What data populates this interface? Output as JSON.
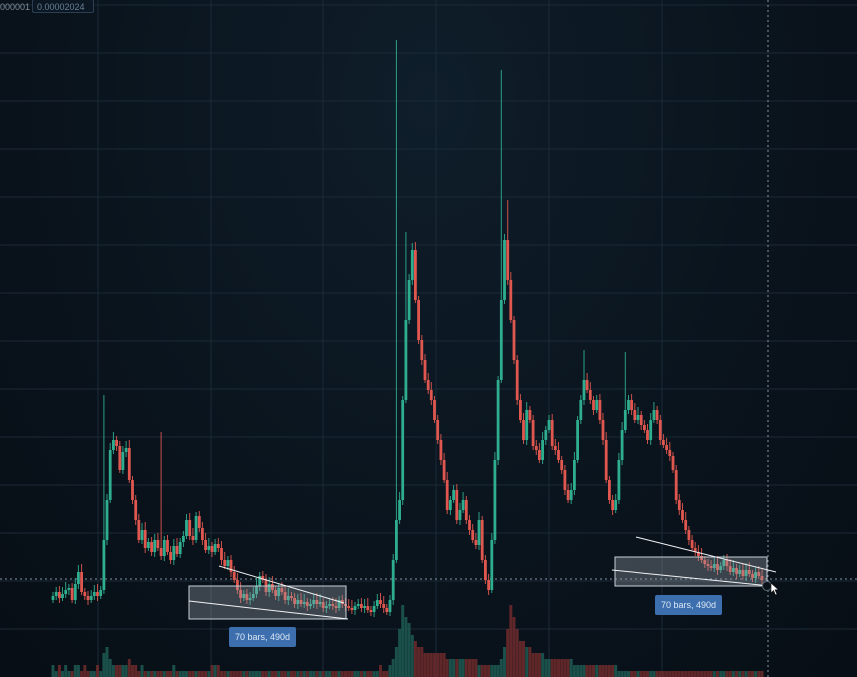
{
  "top": {
    "left_value": "000001",
    "price_value": "0.00002024"
  },
  "chart_data": {
    "type": "candlestick",
    "title": "",
    "xlabel": "",
    "ylabel": "",
    "grid": true,
    "colors": {
      "up": "#2fae8f",
      "down": "#e0574f",
      "grid": "#1a2a38",
      "volume_up": "#1f5a52",
      "volume_down": "#6e2c2c"
    },
    "close_series": [
      596,
      592,
      598,
      594,
      590,
      588,
      600,
      584,
      572,
      592,
      596,
      600,
      596,
      592,
      596,
      590,
      540,
      500,
      450,
      440,
      446,
      470,
      452,
      448,
      480,
      500,
      520,
      540,
      530,
      548,
      542,
      552,
      540,
      548,
      556,
      540,
      552,
      560,
      546,
      554,
      542,
      536,
      520,
      536,
      540,
      516,
      528,
      540,
      550,
      546,
      552,
      544,
      548,
      560,
      566,
      560,
      572,
      580,
      590,
      598,
      594,
      600,
      598,
      594,
      586,
      576,
      580,
      592,
      584,
      590,
      596,
      588,
      592,
      600,
      596,
      598,
      604,
      600,
      604,
      602,
      606,
      604,
      600,
      604,
      602,
      608,
      606,
      604,
      606,
      608,
      600,
      604,
      606,
      608,
      610,
      606,
      604,
      608,
      606,
      610,
      612,
      606,
      600,
      604,
      608,
      612,
      600,
      560,
      520,
      500,
      400,
      320,
      280,
      250,
      300,
      340,
      360,
      380,
      390,
      400,
      420,
      440,
      460,
      480,
      510,
      500,
      490,
      520,
      510,
      500,
      520,
      530,
      540,
      545,
      520,
      560,
      580,
      590,
      540,
      460,
      380,
      300,
      240,
      280,
      320,
      360,
      400,
      420,
      440,
      410,
      420,
      446,
      450,
      460,
      440,
      430,
      420,
      446,
      450,
      460,
      470,
      490,
      500,
      490,
      460,
      420,
      400,
      380,
      390,
      400,
      410,
      400,
      420,
      440,
      480,
      500,
      510,
      500,
      460,
      430,
      410,
      400,
      410,
      420,
      415,
      425,
      430,
      440,
      420,
      410,
      420,
      440,
      445,
      450,
      456,
      470,
      500,
      510,
      520,
      530,
      540,
      548,
      552,
      556,
      560,
      564,
      566,
      568,
      564,
      570,
      566,
      560,
      566,
      572,
      568,
      574,
      570,
      576,
      570,
      574,
      578,
      572,
      576,
      580
    ],
    "volume": [
      2,
      1,
      2,
      1,
      2,
      1,
      1,
      2,
      2,
      1,
      2,
      1,
      1,
      1,
      2,
      1,
      4,
      5,
      3,
      2,
      2,
      2,
      2,
      2,
      3,
      2,
      2,
      1,
      2,
      1,
      1,
      1,
      1,
      1,
      1,
      1,
      1,
      1,
      2,
      1,
      1,
      1,
      1,
      1,
      1,
      1,
      1,
      1,
      1,
      1,
      2,
      2,
      2,
      1,
      1,
      1,
      1,
      1,
      1,
      1,
      1,
      1,
      1,
      1,
      1,
      1,
      1,
      1,
      1,
      1,
      1,
      1,
      1,
      1,
      1,
      1,
      1,
      1,
      1,
      1,
      1,
      1,
      1,
      1,
      1,
      1,
      1,
      1,
      1,
      1,
      1,
      1,
      1,
      1,
      1,
      1,
      1,
      1,
      1,
      1,
      1,
      1,
      1,
      2,
      1,
      1,
      2,
      3,
      5,
      8,
      12,
      10,
      9,
      7,
      6,
      5,
      5,
      4,
      4,
      4,
      4,
      4,
      4,
      4,
      3,
      3,
      3,
      3,
      3,
      3,
      3,
      3,
      3,
      3,
      2,
      2,
      2,
      2,
      2,
      2,
      2,
      3,
      5,
      8,
      12,
      10,
      8,
      6,
      6,
      5,
      5,
      4,
      4,
      4,
      4,
      3,
      3,
      3,
      3,
      3,
      3,
      3,
      3,
      3,
      2,
      2,
      2,
      2,
      2,
      2,
      2,
      2,
      2,
      2,
      2,
      2,
      2,
      2,
      1,
      1,
      1,
      1,
      1,
      1,
      1,
      1,
      1,
      1,
      1,
      1,
      1,
      1,
      1,
      1,
      1,
      1,
      1,
      1,
      1,
      1,
      1,
      1,
      1,
      1,
      1,
      1,
      1,
      1,
      1,
      1,
      1,
      1
    ],
    "horizontal_line_label": "",
    "annotations": [
      {
        "type": "measure",
        "label": "70 bars, 490d"
      },
      {
        "type": "measure",
        "label": "70 bars, 490d"
      }
    ]
  }
}
